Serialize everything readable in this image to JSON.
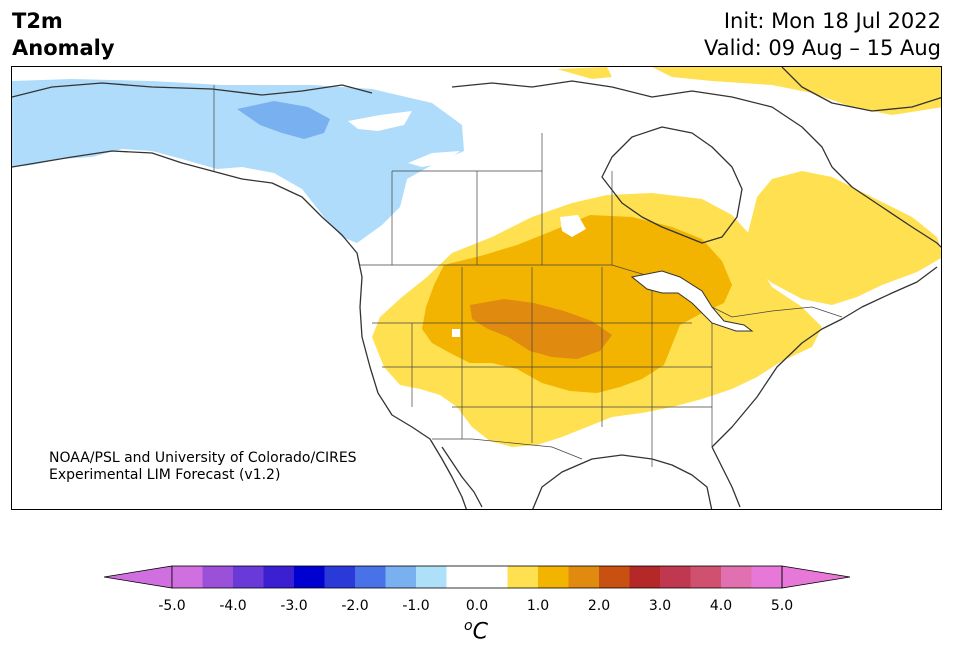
{
  "title": {
    "line1": "T2m",
    "line2": "Anomaly"
  },
  "subtitle": {
    "init": "Init: Mon 18 Jul 2022",
    "valid": "Valid: 09 Aug – 15 Aug"
  },
  "credit": {
    "line1": "NOAA/PSL and University of Colorado/CIRES",
    "line2": "Experimental LIM Forecast (v1.2)"
  },
  "colorbar": {
    "ticks": [
      "-5.0",
      "-4.0",
      "-3.0",
      "-2.0",
      "-1.0",
      "0.0",
      "1.0",
      "2.0",
      "3.0",
      "4.0",
      "5.0"
    ],
    "unit_o": "o",
    "unit_c": "C",
    "colors": [
      "#d070e0",
      "#9a50d8",
      "#6a3ad8",
      "#3a20d0",
      "#0000d0",
      "#2a3ad8",
      "#4a72e8",
      "#78b0f0",
      "#aee0fa",
      "#ffffff",
      "#ffffff",
      "#ffe050",
      "#f2b400",
      "#e08a10",
      "#c85010",
      "#b42828",
      "#c03850",
      "#d05070",
      "#e070b0",
      "#e878d8"
    ],
    "under_color": "#d070e0",
    "over_color": "#e878d8"
  },
  "map_colors": {
    "land": "#ffffff",
    "coast": "#333333",
    "cold_light": "#aedcfa",
    "cold_mid": "#78b0f0",
    "warm_light": "#ffe050",
    "warm_mid": "#f2b400",
    "warm_strong": "#e08a10"
  }
}
